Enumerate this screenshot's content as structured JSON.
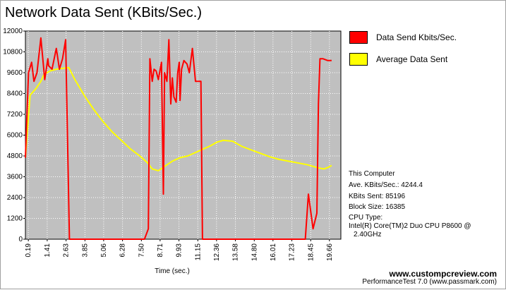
{
  "chart_data": {
    "type": "line",
    "title": "Network Data Sent (KBits/Sec.)",
    "xlabel": "Time (sec.)",
    "ylabel": "",
    "ylim": [
      0,
      12000
    ],
    "xlim": [
      0,
      20.4
    ],
    "yticks": [
      0,
      1200,
      2400,
      3600,
      4800,
      6000,
      7200,
      8400,
      9600,
      10800,
      12000
    ],
    "xticks": [
      0.19,
      1.41,
      2.63,
      3.85,
      5.06,
      6.28,
      7.5,
      8.71,
      9.93,
      11.15,
      12.36,
      13.58,
      14.8,
      16.01,
      17.23,
      18.45,
      19.66
    ],
    "xtick_labels": [
      "0.19",
      "1.41",
      "2.63",
      "3.85",
      "5.06",
      "6.28",
      "7.50",
      "8.71",
      "9.93",
      "11.15",
      "12.36",
      "13.58",
      "14.80",
      "16.01",
      "17.23",
      "18.45",
      "19.66"
    ],
    "ytick_labels": [
      "0",
      "1200",
      "2400",
      "3600",
      "4800",
      "6000",
      "7200",
      "8400",
      "9600",
      "10800",
      "12000"
    ],
    "grid": true,
    "legend_position": "right",
    "series": [
      {
        "name": "Data Send Kbits/Sec.",
        "color": "#ff0000",
        "x": [
          0.0,
          0.2,
          0.4,
          0.55,
          0.75,
          1.0,
          1.25,
          1.45,
          1.5,
          1.72,
          2.0,
          2.2,
          2.4,
          2.6,
          2.85,
          2.95,
          3.05,
          3.8,
          5.0,
          6.2,
          7.4,
          7.7,
          7.95,
          8.05,
          8.2,
          8.32,
          8.45,
          8.6,
          8.8,
          8.92,
          9.0,
          9.15,
          9.28,
          9.4,
          9.5,
          9.6,
          9.75,
          9.85,
          9.95,
          10.0,
          10.1,
          10.25,
          10.35,
          10.45,
          10.6,
          10.8,
          11.0,
          11.15,
          11.35,
          11.45,
          11.52,
          11.6,
          11.75,
          11.95,
          12.2,
          12.5,
          12.7,
          13.5,
          14.7,
          15.9,
          17.1,
          17.9,
          18.1,
          18.3,
          18.6,
          18.85,
          18.95,
          19.05,
          19.25,
          19.55,
          19.8
        ],
        "y": [
          4700,
          9600,
          10200,
          9100,
          9600,
          11600,
          9200,
          10400,
          10000,
          9800,
          11000,
          9800,
          10400,
          11500,
          0,
          0,
          0,
          0,
          0,
          0,
          0,
          0,
          600,
          10400,
          9100,
          9800,
          9700,
          9200,
          10200,
          2600,
          9600,
          9100,
          11500,
          7800,
          9300,
          8200,
          7900,
          9600,
          10200,
          8000,
          9800,
          10300,
          10200,
          10100,
          9600,
          11000,
          9100,
          9100,
          9100,
          0,
          0,
          0,
          0,
          0,
          0,
          0,
          0,
          0,
          0,
          0,
          0,
          0,
          0,
          2600,
          600,
          1500,
          7800,
          10400,
          10400,
          10300,
          10300
        ]
      },
      {
        "name": "Average Data Sent",
        "color": "#ffff00",
        "x": [
          0.0,
          0.3,
          0.7,
          1.0,
          1.2,
          1.6,
          2.0,
          2.4,
          2.8,
          3.2,
          3.8,
          4.4,
          5.0,
          5.6,
          6.2,
          6.8,
          7.4,
          7.9,
          8.2,
          8.6,
          9.0,
          9.5,
          10.0,
          10.5,
          11.0,
          11.5,
          12.0,
          12.4,
          12.8,
          13.4,
          14.0,
          14.6,
          15.2,
          15.8,
          16.4,
          17.0,
          17.6,
          18.2,
          18.6,
          19.0,
          19.3,
          19.6,
          19.8
        ],
        "y": [
          4700,
          8300,
          8700,
          9100,
          9500,
          9700,
          9800,
          9850,
          9900,
          9200,
          8300,
          7500,
          6800,
          6200,
          5700,
          5200,
          4800,
          4400,
          4050,
          3950,
          4200,
          4500,
          4700,
          4800,
          5000,
          5200,
          5400,
          5600,
          5700,
          5650,
          5350,
          5150,
          4950,
          4750,
          4600,
          4500,
          4400,
          4300,
          4200,
          4100,
          4050,
          4150,
          4250
        ]
      }
    ]
  },
  "legend": {
    "items": [
      {
        "label": "Data Send Kbits/Sec.",
        "color": "#ff0000"
      },
      {
        "label": "Average Data Sent",
        "color": "#ffff00"
      }
    ]
  },
  "info": {
    "computer": "This Computer",
    "ave": "Ave. KBits/Sec.: 4244.4",
    "bits_sent": "KBits Sent: 85196",
    "block_size": "Block Size: 16385",
    "cpu_type": "CPU Type:",
    "cpu_line1": "Intel(R) Core(TM)2 Duo CPU P8600 @",
    "cpu_line2": "2.40GHz"
  },
  "footer": {
    "url": "www.custompcreview.com",
    "version": "PerformanceTest 7.0 (www.passmark.com)"
  }
}
